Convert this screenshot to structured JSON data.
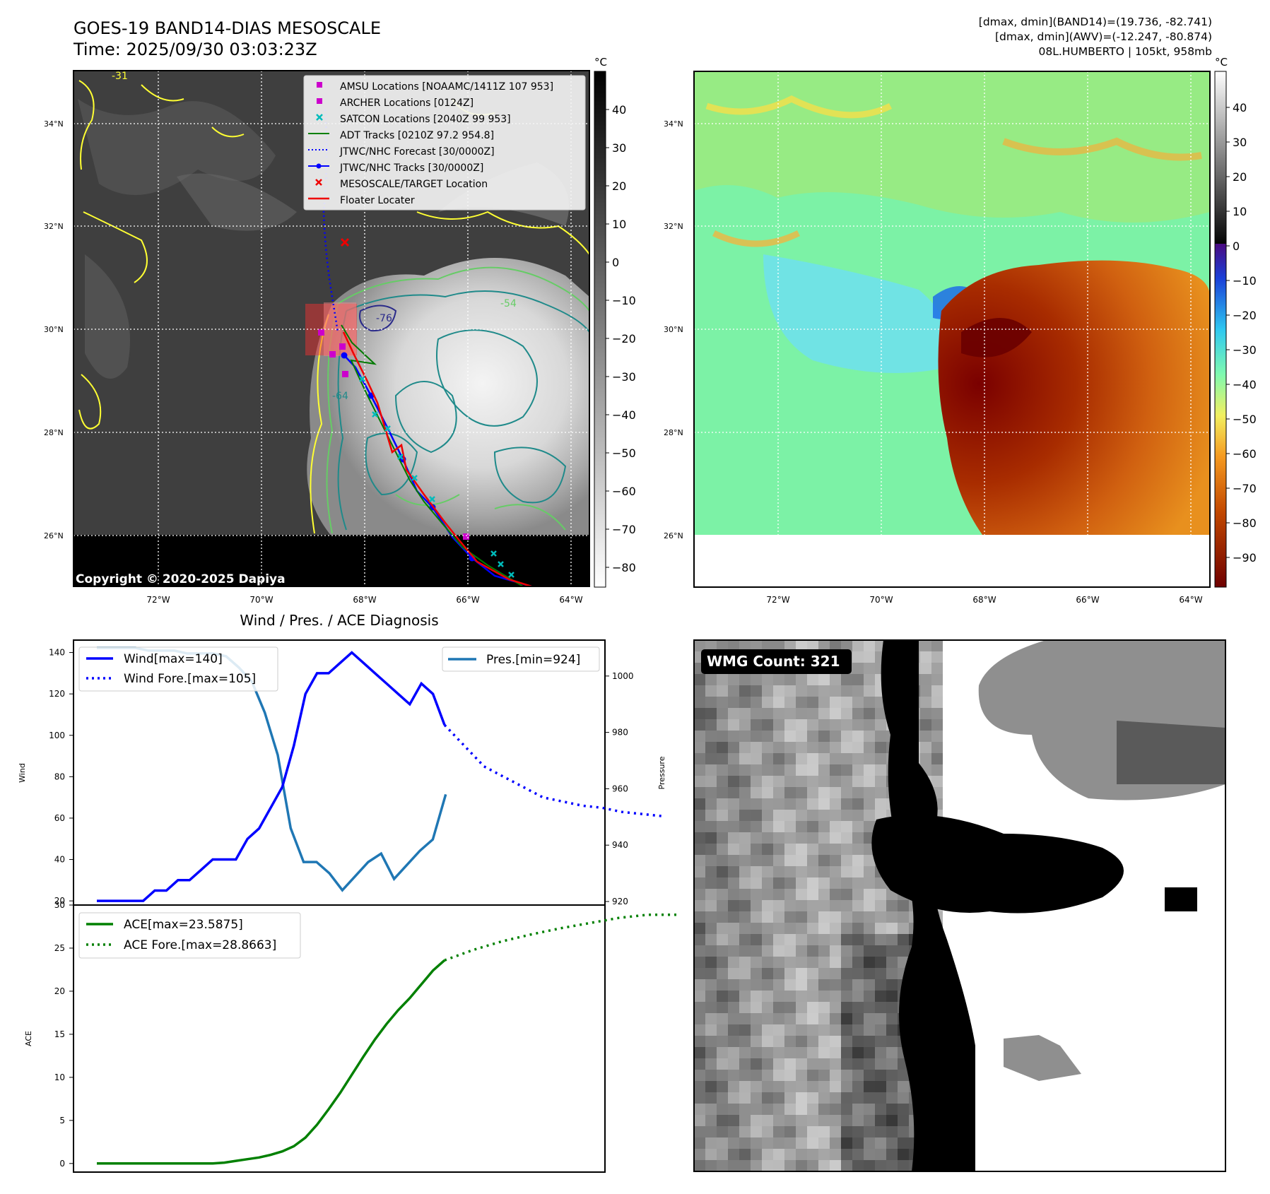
{
  "header": {
    "title_line1": "GOES-19 BAND14-DIAS MESOSCALE",
    "title_line2": "Time: 2025/09/30 03:03:23Z",
    "stats_line1": "[dmax, dmin](BAND14)=(19.736, -82.741)",
    "stats_line2": "[dmax, dmin](AWV)=(-12.247, -80.874)",
    "stats_line3": "08L.HUMBERTO | 105kt, 958mb"
  },
  "map_common": {
    "lat_labels": [
      "34°N",
      "32°N",
      "30°N",
      "28°N",
      "26°N"
    ],
    "lon_labels": [
      "72°W",
      "70°W",
      "68°W",
      "66°W",
      "64°W"
    ],
    "colorbar_unit": "°C"
  },
  "band14_panel": {
    "colorbar_ticks": [
      "40",
      "30",
      "20",
      "10",
      "0",
      "−10",
      "−20",
      "−30",
      "−40",
      "−50",
      "−60",
      "−70",
      "−80"
    ],
    "copyright": "Copyright © 2020-2025 Dapiya",
    "contour_labels": [
      "-31",
      "-54",
      "-64",
      "-76"
    ],
    "legend": [
      {
        "label": "AMSU Locations [NOAAMC/1411Z 107 953]",
        "color": "#cc00cc",
        "marker": "square"
      },
      {
        "label": "ARCHER Locations [0124Z]",
        "color": "#cc00cc",
        "marker": "square"
      },
      {
        "label": "SATCON Locations [2040Z 99 953]",
        "color": "#00bbbb",
        "marker": "x"
      },
      {
        "label": "ADT Tracks [0210Z 97.2 954.8]",
        "color": "#008000",
        "marker": "line"
      },
      {
        "label": "JTWC/NHC Forecast [30/0000Z]",
        "color": "#0000ff",
        "marker": "dotted"
      },
      {
        "label": "JTWC/NHC Tracks [30/0000Z]",
        "color": "#0000ff",
        "marker": "line-dot"
      },
      {
        "label": "MESOSCALE/TARGET Location",
        "color": "#ff0000",
        "marker": "x"
      },
      {
        "label": "Floater Locater",
        "color": "#ff0000",
        "marker": "line"
      }
    ]
  },
  "awv_panel": {
    "colorbar_ticks": [
      "40",
      "30",
      "20",
      "10",
      "0",
      "−10",
      "−20",
      "−30",
      "−40",
      "−50",
      "−60",
      "−70",
      "−80",
      "−90"
    ]
  },
  "wmg_panel": {
    "badge": "WMG Count: 321"
  },
  "chart_data": [
    {
      "type": "line",
      "title": "Wind / Pres. / ACE Diagnosis",
      "ylabel": "Wind",
      "y2label": "Pressure",
      "ylim": [
        18,
        146
      ],
      "y2lim": [
        920,
        1014
      ],
      "yticks": [
        "140",
        "120",
        "100",
        "80",
        "60",
        "40",
        "20"
      ],
      "y2ticks": [
        "1000",
        "980",
        "960",
        "940",
        "920"
      ],
      "series": [
        {
          "name": "Wind[max=140]",
          "color": "#0000ff",
          "style": "solid",
          "values": [
            20,
            20,
            20,
            20,
            20,
            25,
            25,
            30,
            30,
            35,
            40,
            40,
            40,
            50,
            55,
            65,
            75,
            95,
            120,
            130,
            130,
            135,
            140,
            135,
            130,
            125,
            120,
            115,
            125,
            120,
            105
          ]
        },
        {
          "name": "Wind Fore.[max=105]",
          "color": "#0000ff",
          "style": "dotted",
          "values": [
            105,
            95,
            85,
            80,
            75,
            70,
            68,
            66,
            65,
            63,
            62,
            61
          ]
        },
        {
          "name": "Pres.[min=924]",
          "color": "#1f77b4",
          "style": "solid",
          "axis": "right",
          "values": [
            1010,
            1010,
            1010,
            1010,
            1009,
            1009,
            1009,
            1008,
            1008,
            1008,
            1007,
            1003,
            998,
            987,
            972,
            946,
            934,
            934,
            930,
            924,
            929,
            934,
            937,
            928,
            933,
            938,
            942,
            958
          ]
        }
      ]
    },
    {
      "type": "line",
      "ylabel": "ACE",
      "ylim": [
        -1,
        30
      ],
      "yticks": [
        "30",
        "25",
        "20",
        "15",
        "10",
        "5",
        "0"
      ],
      "series": [
        {
          "name": "ACE[max=23.5875]",
          "color": "#008000",
          "style": "solid",
          "values": [
            0,
            0,
            0,
            0,
            0,
            0,
            0,
            0,
            0,
            0,
            0,
            0.1,
            0.3,
            0.5,
            0.7,
            1.0,
            1.4,
            2.0,
            3.0,
            4.5,
            6.3,
            8.2,
            10.3,
            12.4,
            14.4,
            16.2,
            17.8,
            19.2,
            20.8,
            22.4,
            23.5875
          ]
        },
        {
          "name": "ACE Fore.[max=28.8663]",
          "color": "#008000",
          "style": "dotted",
          "values": [
            23.5875,
            24.8,
            25.8,
            26.6,
            27.3,
            27.9,
            28.5,
            28.8663,
            28.8663
          ]
        }
      ]
    }
  ]
}
